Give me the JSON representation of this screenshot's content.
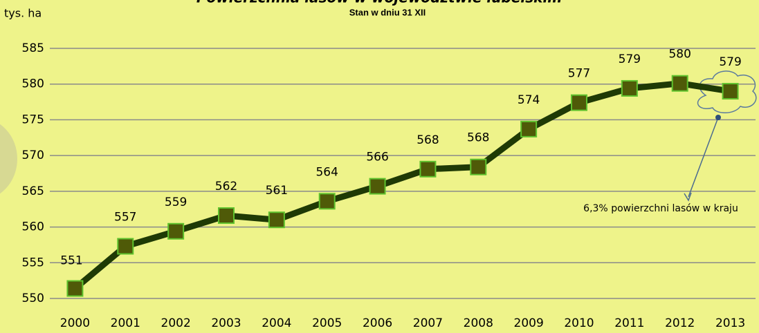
{
  "chart_data": {
    "type": "line",
    "title": "Powierzchnia lasów w województwie lubelskim",
    "subtitle": "Stan w dniu 31 XII",
    "y_label": "tys. ha",
    "categories": [
      "2000",
      "2001",
      "2002",
      "2003",
      "2004",
      "2005",
      "2006",
      "2007",
      "2008",
      "2009",
      "2010",
      "2011",
      "2012",
      "2013"
    ],
    "series": [
      {
        "name": "Powierzchnia lasów",
        "color": "#1f3a05",
        "marker_color": "#4f5a08",
        "marker_edge": "#5fc22e",
        "values": [
          551.4,
          557.3,
          559.4,
          561.6,
          561.0,
          563.6,
          565.7,
          568.1,
          568.4,
          573.7,
          577.4,
          579.4,
          580.1,
          579.0
        ],
        "value_labels": [
          "551",
          "557",
          "559",
          "562",
          "561",
          "564",
          "566",
          "568",
          "568",
          "574",
          "577",
          "579",
          "580",
          "579"
        ]
      }
    ],
    "ylim": [
      550,
      585
    ],
    "yticks": [
      550,
      555,
      560,
      565,
      570,
      575,
      580,
      585
    ],
    "grid": true,
    "annotation": "6,3% powierzchni lasów w kraju"
  }
}
